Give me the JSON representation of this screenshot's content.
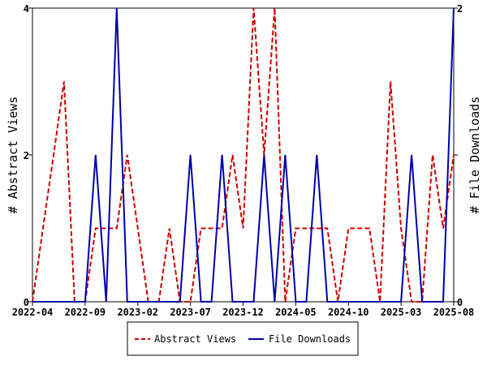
{
  "chart_data": {
    "type": "line",
    "x": [
      "2022-04",
      "2022-05",
      "2022-06",
      "2022-07",
      "2022-08",
      "2022-09",
      "2022-10",
      "2022-11",
      "2022-12",
      "2023-01",
      "2023-02",
      "2023-03",
      "2023-04",
      "2023-05",
      "2023-06",
      "2023-07",
      "2023-08",
      "2023-09",
      "2023-10",
      "2023-11",
      "2023-12",
      "2024-01",
      "2024-02",
      "2024-03",
      "2024-04",
      "2024-05",
      "2024-06",
      "2024-07",
      "2024-08",
      "2024-09",
      "2024-10",
      "2024-11",
      "2024-12",
      "2025-01",
      "2025-02",
      "2025-03",
      "2025-04",
      "2025-05",
      "2025-06",
      "2025-07",
      "2025-08"
    ],
    "xticks": [
      "2022-04",
      "2022-09",
      "2023-02",
      "2023-07",
      "2023-12",
      "2024-05",
      "2024-10",
      "2025-03",
      "2025-08"
    ],
    "series": [
      {
        "name": "Abstract Views",
        "axis": "left",
        "color": "#cc0000",
        "style": "dashed",
        "values": [
          0,
          1,
          2,
          3,
          0,
          0,
          1,
          1,
          1,
          2,
          1,
          0,
          0,
          1,
          0,
          0,
          1,
          1,
          1,
          2,
          1,
          4,
          2,
          4,
          0,
          1,
          1,
          1,
          1,
          0,
          1,
          1,
          1,
          0,
          3,
          1,
          0,
          0,
          2,
          1,
          2
        ]
      },
      {
        "name": "File Downloads",
        "axis": "right",
        "color": "#0000aa",
        "style": "solid",
        "values": [
          0,
          0,
          0,
          0,
          0,
          0,
          1,
          0,
          2,
          0,
          0,
          0,
          0,
          0,
          0,
          1,
          0,
          0,
          1,
          0,
          0,
          0,
          1,
          0,
          1,
          0,
          0,
          1,
          0,
          0,
          0,
          0,
          0,
          0,
          0,
          0,
          1,
          0,
          0,
          0,
          2
        ]
      }
    ],
    "ylabel_left": "# Abstract Views",
    "ylabel_right": "# File Downloads",
    "ylim_left": [
      0,
      4
    ],
    "ylim_right": [
      0,
      2
    ],
    "yticks_left": [
      "0",
      "2",
      "4"
    ],
    "yticks_right": [
      "0",
      "1",
      "2"
    ],
    "legend": {
      "placement": "bottom-center",
      "entries": [
        "Abstract Views",
        "File Downloads"
      ]
    }
  }
}
